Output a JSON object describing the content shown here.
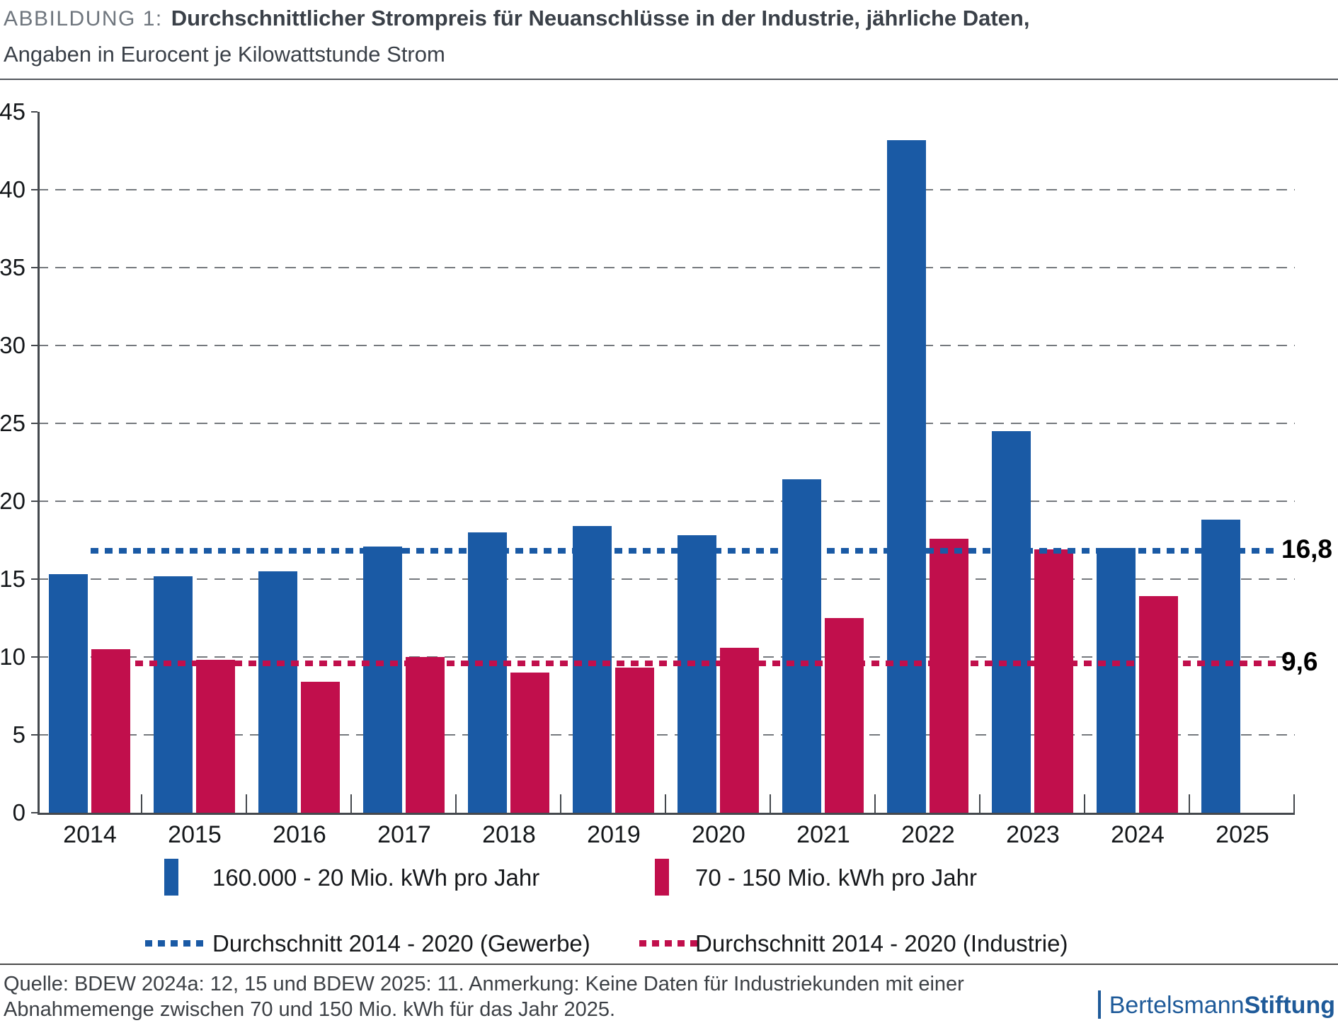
{
  "header": {
    "figure_label": "ABBILDUNG 1:",
    "title": "Durchschnittlicher Strompreis für Neuanschlüsse in der Industrie, jährliche Daten,",
    "subtitle": "Angaben in Eurocent je Kilowattstunde Strom"
  },
  "chart_data": {
    "type": "bar",
    "categories": [
      "2014",
      "2015",
      "2016",
      "2017",
      "2018",
      "2019",
      "2020",
      "2021",
      "2022",
      "2023",
      "2024",
      "2025"
    ],
    "series": [
      {
        "name": "160.000 - 20 Mio. kWh pro Jahr",
        "color": "#1A5AA5",
        "values": [
          15.3,
          15.2,
          15.5,
          17.1,
          18.0,
          18.4,
          17.8,
          21.4,
          43.2,
          24.5,
          17.0,
          18.8
        ]
      },
      {
        "name": "70 - 150 Mio. kWh pro Jahr",
        "color": "#C10F4C",
        "values": [
          10.5,
          9.8,
          8.4,
          10.0,
          9.0,
          9.3,
          10.6,
          12.5,
          17.6,
          16.9,
          13.9,
          null
        ]
      }
    ],
    "reference_lines": [
      {
        "label": "Durchschnitt 2014 - 2020 (Gewerbe)",
        "value": 16.8,
        "value_label": "16,8",
        "color": "#1A5AA5"
      },
      {
        "label": "Durchschnitt 2014 - 2020 (Industrie)",
        "value": 9.6,
        "value_label": "9,6",
        "color": "#C10F4C"
      }
    ],
    "ylim": [
      0,
      45
    ],
    "yticks": [
      0,
      5,
      10,
      15,
      20,
      25,
      30,
      35,
      40,
      45
    ],
    "grid": "dashed horizontal",
    "legend_position": "bottom"
  },
  "footer": {
    "source_line1": "Quelle: BDEW 2024a: 12, 15 und BDEW 2025: 11. Anmerkung: Keine Daten für Industriekunden mit einer",
    "source_line2": "Abnahmemenge zwischen 70 und 150 Mio. kWh für das Jahr 2025.",
    "logo_prefix": "Bertelsmann",
    "logo_suffix": "Stiftung"
  }
}
